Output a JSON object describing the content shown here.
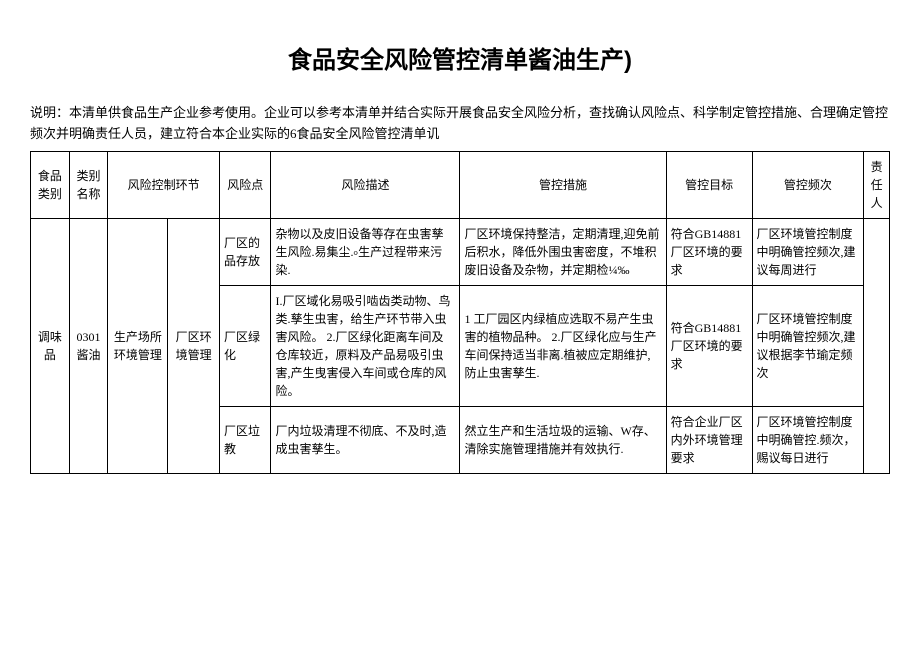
{
  "title": "食品安全风险管控清单酱油生产)",
  "description": "说明：本清单供食品生产企业参考使用。企业可以参考本清单并结合实际开展食品安全风险分析，查找确认风险点、科学制定管控措施、合理确定管控频次并明确责任人员，建立符合本企业实际的6食品安全风险管控清单讥",
  "columns": {
    "food_category": "食品类别",
    "category_name": "类别名称",
    "risk_link": "风险控制环节",
    "risk_point": "风险点",
    "risk_description": "风险描述",
    "control_measures": "管控措施",
    "control_goal": "管控目标",
    "control_frequency": "管控频次",
    "responsible": "责任人"
  },
  "merged": {
    "food_category": "调味品",
    "category_name": "0301酱油",
    "link_main": "生产场所环境管理",
    "link_sub": "厂区环境管理"
  },
  "rows": [
    {
      "risk_point": "厂区的品存放",
      "risk_description": "杂物以及皮旧设备等存在虫害孳生风险.易集尘.৹生产过程带来污染.",
      "control_measures": "厂区环境保持整洁，定期清理,迎免前后积水，降低外围虫害密度，不堆积废旧设备及杂物，并定期检¼‰",
      "control_goal": "符合GB14881厂区环境的要求",
      "control_frequency": "厂区环境管控制度中明确管控频次,建议每周进行"
    },
    {
      "risk_point": "厂区绿化",
      "risk_description": "I.厂区域化易吸引啮齿类动物、鸟类.孳生虫害，给生产环节带入虫害风险。\n2.厂区绿化距离车间及仓库较近，原料及产品易吸引虫害,产生曳害侵入车间或仓库的风险。",
      "control_measures": "1\t工厂园区内绿植应选取不易产生虫害的植物品种。\n2.厂区绿化应与生产车间保持适当非离.植被应定期维护,防止虫害孳生.",
      "control_goal": "符合GB14881厂区环境的要求",
      "control_frequency": "厂区环境管控制度中明确管控频次,建议根据李节瑜定频次"
    },
    {
      "risk_point": "厂区垃教",
      "risk_description": "厂内垃圾清理不彻底、不及时,造成虫害孳生。",
      "control_measures": "然立生产和生活垃圾的运输、W存、清除实施管理措施并有效执行.",
      "control_goal": "符合企业厂区内外环境管理要求",
      "control_frequency": "厂区环境管控制度中明确管控.频次，赐议每日进行"
    }
  ]
}
